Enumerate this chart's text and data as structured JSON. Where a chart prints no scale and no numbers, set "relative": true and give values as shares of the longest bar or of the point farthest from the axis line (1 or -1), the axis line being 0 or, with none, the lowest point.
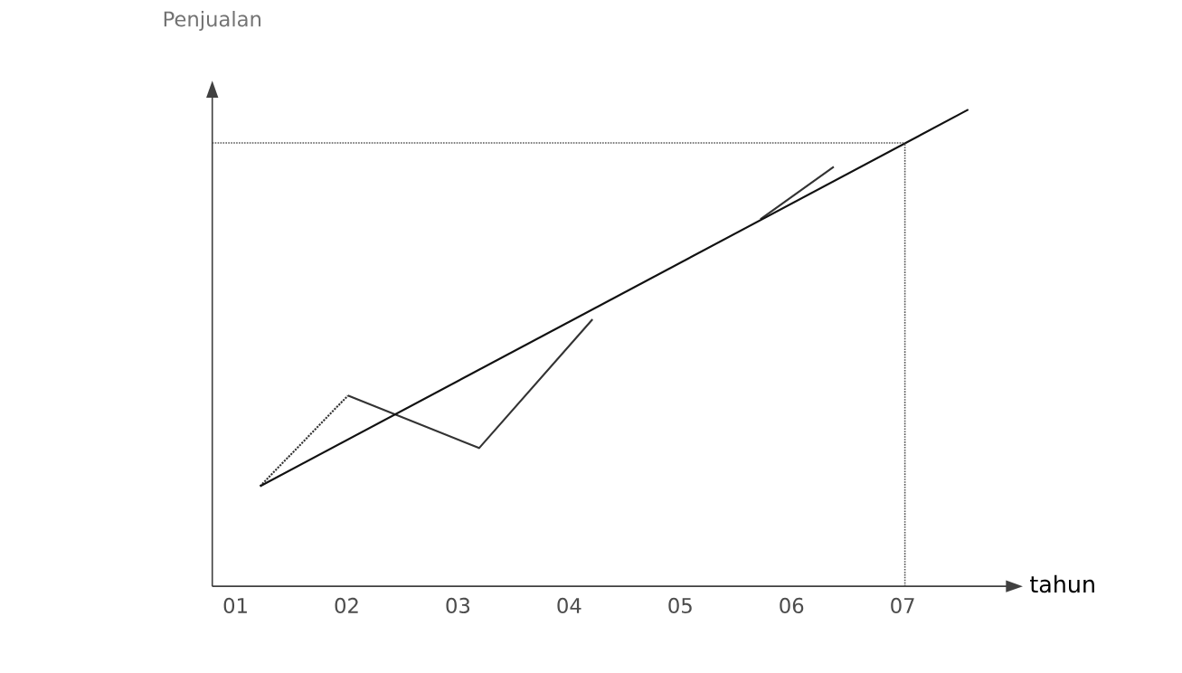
{
  "chart_data": {
    "type": "line",
    "relative": true,
    "xlabel": "tahun",
    "ylabel": "Penjualan",
    "xlim": [
      0.79,
      7.95
    ],
    "xticks": [
      {
        "value": 1,
        "label": "01"
      },
      {
        "value": 2,
        "label": "02"
      },
      {
        "value": 3,
        "label": "03"
      },
      {
        "value": 4,
        "label": "04"
      },
      {
        "value": 5,
        "label": "05"
      },
      {
        "value": 6,
        "label": "06"
      },
      {
        "value": 7,
        "label": "07"
      }
    ],
    "series": [
      {
        "color": "#333333",
        "line_style": "dotted",
        "x": [
          1.22,
          2.01
        ],
        "values": [
          0.21,
          0.4
        ]
      },
      {
        "color": "#333333",
        "line_style": "solid",
        "x": [
          2.01,
          3.19,
          4.21,
          5.0,
          5.72,
          6.38
        ],
        "values": [
          0.4,
          0.29,
          0.56,
          null,
          0.77,
          0.88
        ]
      },
      {
        "color": "#111111",
        "line_style": "solid",
        "x": [
          1.22,
          7.59
        ],
        "values": [
          0.21,
          1.0
        ]
      }
    ],
    "ref_lines": [
      {
        "axis": "x",
        "value": 7.02,
        "line_style": "dotted",
        "color": "#555555"
      },
      {
        "axis": "y",
        "value": 0.93,
        "line_style": "dotted",
        "color": "#555555"
      }
    ]
  }
}
